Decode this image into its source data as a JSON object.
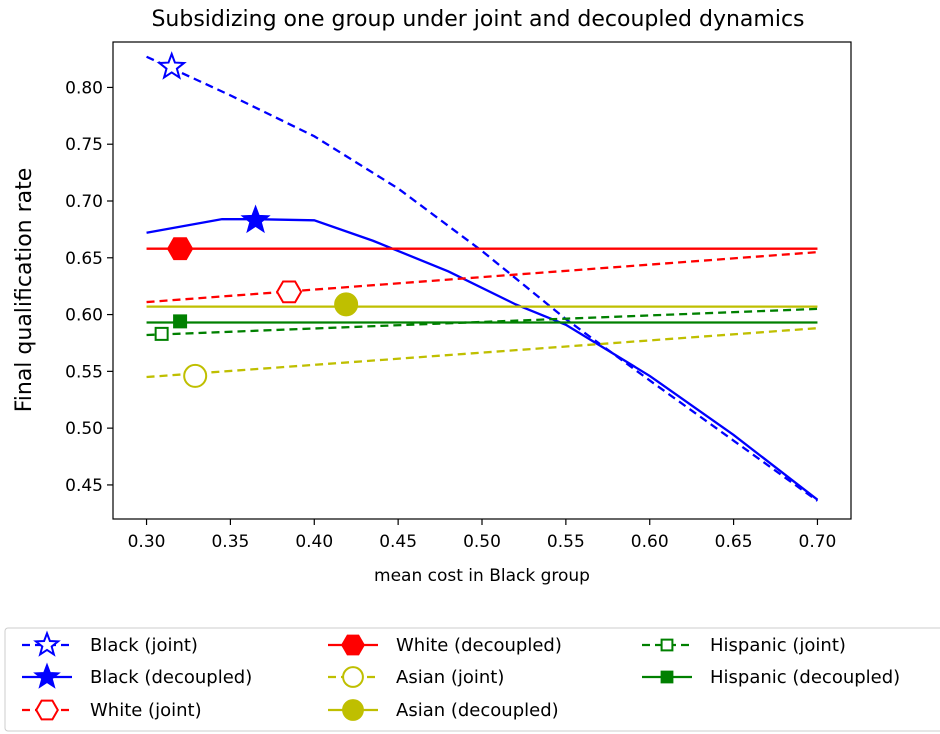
{
  "chart_data": {
    "type": "line",
    "title": "Subsidizing one group under joint and decoupled dynamics",
    "xlabel": "mean cost in Black group",
    "ylabel": "Final qualification rate",
    "xlim": [
      0.28,
      0.72
    ],
    "ylim": [
      0.42,
      0.84
    ],
    "xticks": [
      0.3,
      0.35,
      0.4,
      0.45,
      0.5,
      0.55,
      0.6,
      0.65,
      0.7
    ],
    "xtick_labels": [
      "0.30",
      "0.35",
      "0.40",
      "0.45",
      "0.50",
      "0.55",
      "0.60",
      "0.65",
      "0.70"
    ],
    "yticks": [
      0.45,
      0.5,
      0.55,
      0.6,
      0.65,
      0.7,
      0.75,
      0.8
    ],
    "ytick_labels": [
      "0.45",
      "0.50",
      "0.55",
      "0.60",
      "0.65",
      "0.70",
      "0.75",
      "0.80"
    ],
    "grid": false,
    "legend_position": "bottom, below plot",
    "series": [
      {
        "name": "Black (joint)",
        "color": "#0000ff",
        "style": "dashed",
        "marker": "star-open",
        "x": [
          0.3,
          0.35,
          0.4,
          0.45,
          0.5,
          0.55,
          0.6,
          0.65,
          0.7
        ],
        "y": [
          0.827,
          0.793,
          0.757,
          0.711,
          0.656,
          0.596,
          0.542,
          0.489,
          0.436
        ],
        "marker_point": [
          0.315,
          0.818
        ]
      },
      {
        "name": "Black (decoupled)",
        "color": "#0000ff",
        "style": "solid",
        "marker": "star-filled",
        "x": [
          0.3,
          0.345,
          0.365,
          0.4,
          0.435,
          0.48,
          0.52,
          0.55,
          0.6,
          0.65,
          0.7
        ],
        "y": [
          0.672,
          0.684,
          0.684,
          0.683,
          0.665,
          0.638,
          0.609,
          0.591,
          0.546,
          0.494,
          0.437
        ],
        "marker_point": [
          0.365,
          0.683
        ]
      },
      {
        "name": "White (joint)",
        "color": "#ff0000",
        "style": "dashed",
        "marker": "hexagon-open",
        "x": [
          0.3,
          0.7
        ],
        "y": [
          0.611,
          0.655
        ],
        "marker_point": [
          0.385,
          0.62
        ]
      },
      {
        "name": "White (decoupled)",
        "color": "#ff0000",
        "style": "solid",
        "marker": "hexagon-filled",
        "x": [
          0.3,
          0.7
        ],
        "y": [
          0.658,
          0.658
        ],
        "marker_point": [
          0.32,
          0.658
        ]
      },
      {
        "name": "Asian (joint)",
        "color": "#bfbf00",
        "style": "dashed",
        "marker": "circle-open",
        "x": [
          0.3,
          0.7
        ],
        "y": [
          0.545,
          0.588
        ],
        "marker_point": [
          0.329,
          0.546
        ]
      },
      {
        "name": "Asian (decoupled)",
        "color": "#bfbf00",
        "style": "solid",
        "marker": "circle-filled",
        "x": [
          0.3,
          0.7
        ],
        "y": [
          0.607,
          0.607
        ],
        "marker_point": [
          0.419,
          0.609
        ]
      },
      {
        "name": "Hispanic (joint)",
        "color": "#008000",
        "style": "dashed",
        "marker": "square-open",
        "x": [
          0.3,
          0.7
        ],
        "y": [
          0.582,
          0.605
        ],
        "marker_point": [
          0.309,
          0.583
        ]
      },
      {
        "name": "Hispanic (decoupled)",
        "color": "#008000",
        "style": "solid",
        "marker": "square-filled",
        "x": [
          0.3,
          0.7
        ],
        "y": [
          0.593,
          0.593
        ],
        "marker_point": [
          0.32,
          0.594
        ]
      }
    ]
  }
}
